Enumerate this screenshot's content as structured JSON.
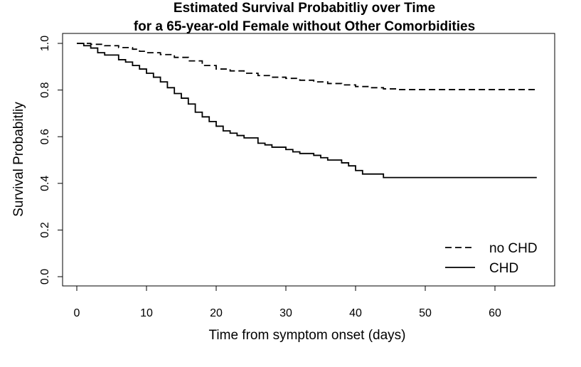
{
  "chart_data": {
    "type": "line",
    "title": "Estimated Survival Probabitliy over Time",
    "subtitle": "for a 65-year-old Female without Other Comorbidities",
    "xlabel": "Time from symptom onset (days)",
    "ylabel": "Survival Probabitliy",
    "xlim": [
      0,
      66
    ],
    "ylim": [
      0,
      1
    ],
    "xticks": [
      0,
      10,
      20,
      30,
      40,
      50,
      60
    ],
    "xtick_labels": [
      "0",
      "10",
      "20",
      "30",
      "40",
      "50",
      "60"
    ],
    "yticks": [
      0,
      0.2,
      0.4,
      0.6,
      0.8,
      1.0
    ],
    "ytick_labels": [
      "0.0",
      "0.2",
      "0.4",
      "0.6",
      "0.8",
      "1.0"
    ],
    "grid": false,
    "legend_position": "bottom-right",
    "step": true,
    "series": [
      {
        "name": "no CHD",
        "line_style": "dashed",
        "color": "#000000",
        "x": [
          0,
          2,
          4,
          6,
          8,
          9,
          10,
          12,
          14,
          16,
          18,
          20,
          22,
          24,
          26,
          28,
          30,
          32,
          34,
          36,
          38,
          40,
          42,
          44,
          46,
          66
        ],
        "y": [
          1.0,
          0.996,
          0.99,
          0.982,
          0.975,
          0.966,
          0.96,
          0.952,
          0.94,
          0.925,
          0.905,
          0.89,
          0.882,
          0.872,
          0.862,
          0.855,
          0.85,
          0.842,
          0.835,
          0.828,
          0.822,
          0.815,
          0.81,
          0.805,
          0.802,
          0.802
        ]
      },
      {
        "name": "CHD",
        "line_style": "solid",
        "color": "#000000",
        "x": [
          0,
          1,
          2,
          3,
          4,
          6,
          7,
          8,
          9,
          10,
          11,
          12,
          13,
          14,
          15,
          16,
          17,
          18,
          19,
          20,
          21,
          22,
          23,
          24,
          26,
          27,
          28,
          30,
          31,
          32,
          34,
          35,
          36,
          38,
          39,
          40,
          41,
          44,
          66
        ],
        "y": [
          1.0,
          0.99,
          0.98,
          0.96,
          0.95,
          0.93,
          0.92,
          0.905,
          0.89,
          0.872,
          0.855,
          0.835,
          0.81,
          0.785,
          0.765,
          0.74,
          0.705,
          0.685,
          0.665,
          0.645,
          0.625,
          0.615,
          0.605,
          0.595,
          0.572,
          0.565,
          0.555,
          0.545,
          0.535,
          0.528,
          0.52,
          0.51,
          0.5,
          0.488,
          0.475,
          0.455,
          0.44,
          0.425,
          0.425
        ]
      }
    ]
  }
}
